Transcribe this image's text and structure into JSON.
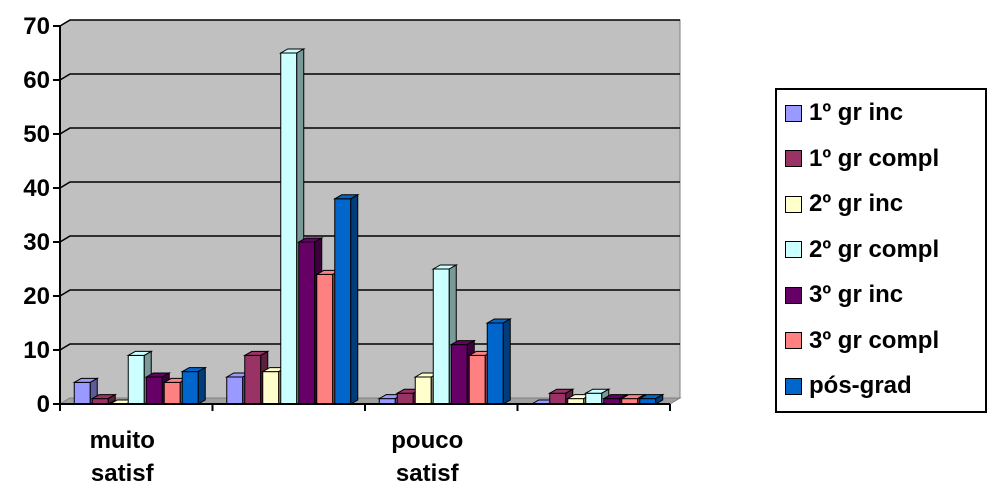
{
  "chart_data": {
    "type": "bar",
    "categories": [
      [
        "muito",
        "satisf"
      ],
      [
        "",
        ""
      ],
      [
        "pouco",
        "satisf"
      ],
      [
        "",
        ""
      ]
    ],
    "series": [
      {
        "name": "1º gr inc",
        "color": "#9999ff",
        "values": [
          4,
          5,
          1,
          0
        ]
      },
      {
        "name": "1º gr compl",
        "color": "#993366",
        "values": [
          1,
          9,
          2,
          2
        ]
      },
      {
        "name": "2º gr inc",
        "color": "#ffffcc",
        "values": [
          0,
          6,
          5,
          1
        ]
      },
      {
        "name": "2º gr compl",
        "color": "#ccffff",
        "values": [
          9,
          65,
          25,
          2
        ]
      },
      {
        "name": "3º gr inc",
        "color": "#660066",
        "values": [
          5,
          30,
          11,
          1
        ]
      },
      {
        "name": "3º gr compl",
        "color": "#ff8080",
        "values": [
          4,
          24,
          9,
          1
        ]
      },
      {
        "name": "pós-grad",
        "color": "#0066cc",
        "values": [
          6,
          38,
          15,
          1
        ]
      }
    ],
    "yticks": [
      "0",
      "10",
      "20",
      "30",
      "40",
      "50",
      "60",
      "70"
    ],
    "ylim": [
      0,
      70
    ],
    "grid": true,
    "legend_position": "right",
    "plot_background": "#c0c0c0",
    "three_d": true
  }
}
